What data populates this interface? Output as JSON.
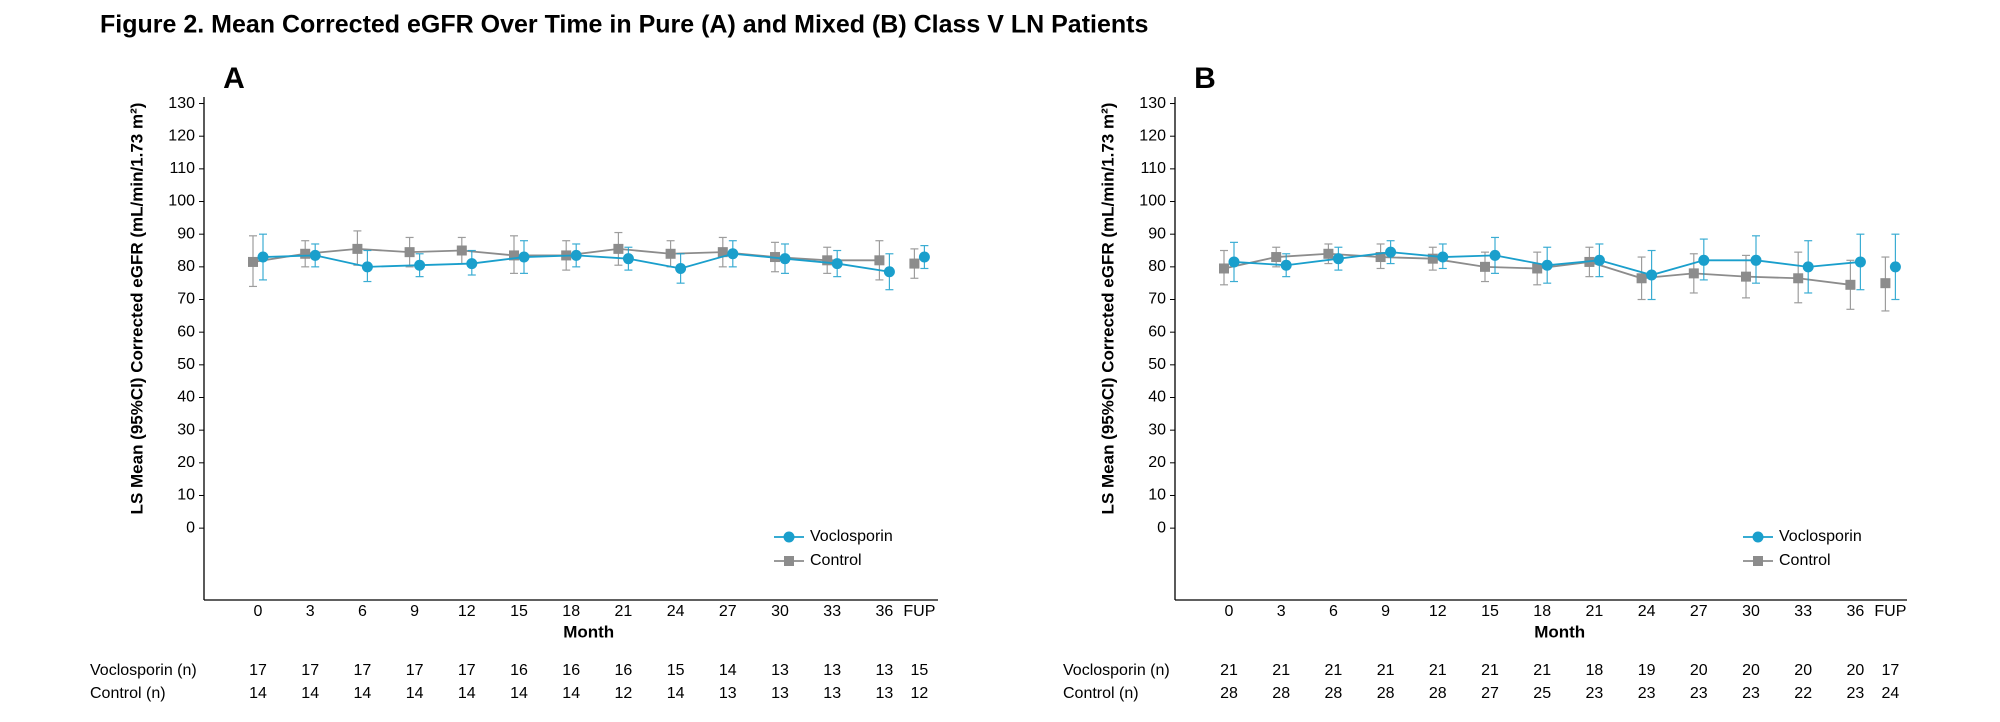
{
  "title": "Figure  2. Mean Corrected eGFR Over Time in Pure (A) and Mixed (B) Class V LN Patients",
  "chart_data": [
    {
      "type": "line",
      "panel": "A",
      "x_label": "Month",
      "y_label": "LS Mean (95%CI) Corrected eGFR (mL/min/1.73 m²)",
      "categories": [
        "0",
        "3",
        "6",
        "9",
        "12",
        "15",
        "18",
        "21",
        "24",
        "27",
        "30",
        "33",
        "36",
        "FUP"
      ],
      "ylim": [
        -22,
        132
      ],
      "yticks": [
        0,
        10,
        20,
        30,
        40,
        50,
        60,
        70,
        80,
        90,
        100,
        110,
        120,
        130
      ],
      "legend": "lower right",
      "series": [
        {
          "name": "Voclosporin",
          "color": "#1a9fcc",
          "marker": "circle",
          "values": [
            83,
            83.5,
            80,
            80.5,
            81,
            83,
            83.5,
            82.5,
            79.5,
            84,
            82.5,
            81,
            78.5,
            83
          ],
          "ci_low": [
            76,
            80,
            75.5,
            77,
            77.5,
            78,
            80,
            79,
            75,
            80,
            78,
            77,
            73,
            79.5
          ],
          "ci_high": [
            90,
            87,
            85,
            84,
            85,
            88,
            87,
            86,
            84,
            88,
            87,
            85,
            84,
            86.5
          ]
        },
        {
          "name": "Control",
          "color": "#8c8c8c",
          "marker": "square",
          "values": [
            81.5,
            84,
            85.5,
            84.5,
            85,
            83.5,
            83.5,
            85.5,
            84,
            84.5,
            83,
            82,
            82,
            81
          ],
          "ci_low": [
            74,
            80,
            80.5,
            80,
            81,
            78,
            79,
            80.5,
            80,
            80,
            78.5,
            78,
            76,
            76.5
          ],
          "ci_high": [
            89.5,
            88,
            91,
            89,
            89,
            89.5,
            88,
            90.5,
            88,
            89,
            87.5,
            86,
            88,
            85.5
          ]
        }
      ],
      "n_rows": [
        {
          "label": "Voclosporin (n)",
          "values": [
            17,
            17,
            17,
            17,
            17,
            16,
            16,
            16,
            15,
            14,
            13,
            13,
            13,
            15
          ]
        },
        {
          "label": "Control (n)",
          "values": [
            14,
            14,
            14,
            14,
            14,
            14,
            14,
            12,
            14,
            13,
            13,
            13,
            13,
            12
          ]
        }
      ]
    },
    {
      "type": "line",
      "panel": "B",
      "x_label": "Month",
      "y_label": "LS Mean (95%CI) Corrected eGFR (mL/min/1.73 m²)",
      "categories": [
        "0",
        "3",
        "6",
        "9",
        "12",
        "15",
        "18",
        "21",
        "24",
        "27",
        "30",
        "33",
        "36",
        "FUP"
      ],
      "ylim": [
        -22,
        132
      ],
      "yticks": [
        0,
        10,
        20,
        30,
        40,
        50,
        60,
        70,
        80,
        90,
        100,
        110,
        120,
        130
      ],
      "legend": "lower right",
      "series": [
        {
          "name": "Voclosporin",
          "color": "#1a9fcc",
          "marker": "circle",
          "values": [
            81.5,
            80.5,
            82.5,
            84.5,
            83,
            83.5,
            80.5,
            82,
            77.5,
            82,
            82,
            80,
            81.5,
            80
          ],
          "ci_low": [
            75.5,
            77,
            79,
            81,
            79.5,
            78,
            75,
            77,
            70,
            76,
            75,
            72,
            73,
            70
          ],
          "ci_high": [
            87.5,
            84,
            86,
            88,
            87,
            89,
            86,
            87,
            85,
            88.5,
            89.5,
            88,
            90,
            90
          ]
        },
        {
          "name": "Control",
          "color": "#8c8c8c",
          "marker": "square",
          "values": [
            79.5,
            83,
            84,
            83,
            82.5,
            80,
            79.5,
            81.5,
            76.5,
            78,
            77,
            76.5,
            74.5,
            75
          ],
          "ci_low": [
            74.5,
            80,
            81,
            79.5,
            79,
            75.5,
            74.5,
            77,
            70,
            72,
            70.5,
            69,
            67,
            66.5
          ],
          "ci_high": [
            85,
            86,
            87,
            87,
            86,
            84.5,
            84.5,
            86,
            83,
            84,
            83.5,
            84.5,
            82,
            83
          ]
        }
      ],
      "n_rows": [
        {
          "label": "Voclosporin (n)",
          "values": [
            21,
            21,
            21,
            21,
            21,
            21,
            21,
            18,
            19,
            20,
            20,
            20,
            20,
            17
          ]
        },
        {
          "label": "Control (n)",
          "values": [
            28,
            28,
            28,
            28,
            28,
            27,
            25,
            23,
            23,
            23,
            23,
            22,
            23,
            24
          ]
        }
      ]
    }
  ]
}
